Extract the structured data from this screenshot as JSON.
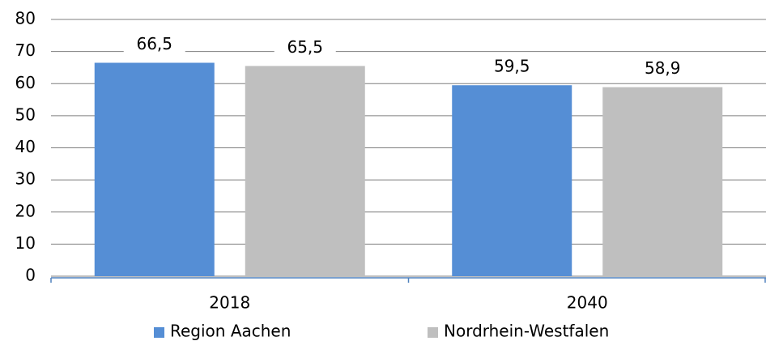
{
  "chart_data": {
    "type": "bar",
    "categories": [
      "2018",
      "2040"
    ],
    "series": [
      {
        "name": "Region Aachen",
        "color": "#558ed5",
        "values": [
          66.5,
          59.5
        ],
        "value_labels": [
          "66,5",
          "59,5"
        ]
      },
      {
        "name": "Nordrhein-Westfalen",
        "color": "#bfbfbf",
        "values": [
          65.5,
          58.9
        ],
        "value_labels": [
          "65,5",
          "58,9"
        ]
      }
    ],
    "ylim": [
      0,
      80
    ],
    "yticks": [
      0,
      10,
      20,
      30,
      40,
      50,
      60,
      70,
      80
    ],
    "grid": true,
    "legend": "bottom"
  }
}
